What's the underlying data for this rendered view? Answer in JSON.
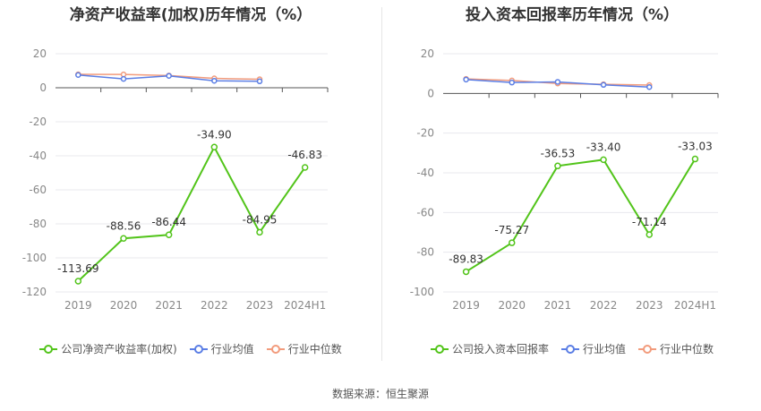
{
  "source": "数据来源：恒生聚源",
  "chart_data": [
    {
      "type": "line",
      "title": "净资产收益率(加权)历年情况（%）",
      "categories": [
        "2019",
        "2020",
        "2021",
        "2022",
        "2023",
        "2024H1"
      ],
      "ylim": [
        -120,
        20
      ],
      "yticks": [
        20,
        0,
        -20,
        -40,
        -60,
        -80,
        -100,
        -120
      ],
      "grid": true,
      "legend_position": "bottom",
      "series": [
        {
          "name": "公司净资产收益率(加权)",
          "color": "#52c41a",
          "values": [
            -113.69,
            -88.56,
            -86.44,
            -34.9,
            -84.95,
            -46.83
          ],
          "labels": [
            "-113.69",
            "-88.56",
            "-86.44",
            "-34.90",
            "-84.95",
            "-46.83"
          ]
        },
        {
          "name": "行业均值",
          "color": "#5b7ee5",
          "values": [
            7.5,
            5.2,
            7.0,
            4.1,
            3.8,
            null
          ]
        },
        {
          "name": "行业中位数",
          "color": "#f29b7c",
          "values": [
            7.9,
            7.8,
            7.2,
            5.5,
            5.0,
            null
          ]
        }
      ]
    },
    {
      "type": "line",
      "title": "投入资本回报率历年情况（%）",
      "categories": [
        "2019",
        "2020",
        "2021",
        "2022",
        "2023",
        "2024H1"
      ],
      "ylim": [
        -100,
        20
      ],
      "yticks": [
        20,
        0,
        -20,
        -40,
        -60,
        -80,
        -100
      ],
      "grid": true,
      "legend_position": "bottom",
      "series": [
        {
          "name": "公司投入资本回报率",
          "color": "#52c41a",
          "values": [
            -89.83,
            -75.27,
            -36.53,
            -33.4,
            -71.14,
            -33.03
          ],
          "labels": [
            "-89.83",
            "-75.27",
            "-36.53",
            "-33.40",
            "-71.14",
            "-33.03"
          ]
        },
        {
          "name": "行业均值",
          "color": "#5b7ee5",
          "values": [
            7.0,
            5.5,
            5.8,
            4.3,
            3.2,
            null
          ]
        },
        {
          "name": "行业中位数",
          "color": "#f29b7c",
          "values": [
            7.3,
            6.5,
            5.0,
            4.6,
            4.2,
            null
          ]
        }
      ]
    }
  ]
}
